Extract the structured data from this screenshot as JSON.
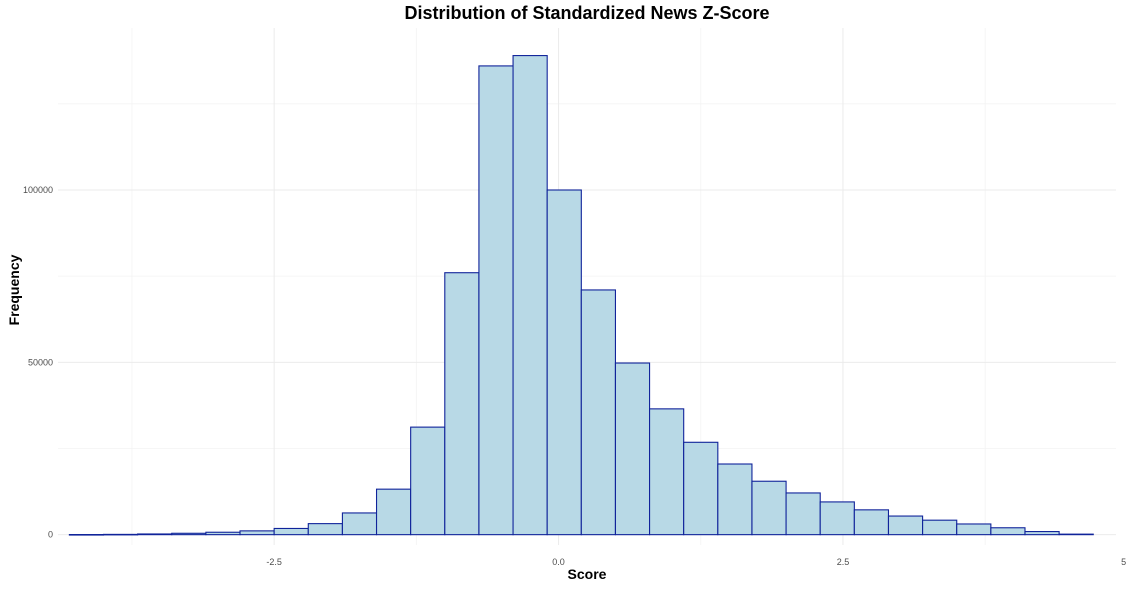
{
  "chart_data": {
    "type": "bar",
    "subtype": "histogram",
    "title": "Distribution of Standardized News Z-Score",
    "xlabel": "Score",
    "ylabel": "Frequency",
    "xlim": [
      -4.4,
      4.9
    ],
    "ylim": [
      -3000,
      147000
    ],
    "x_ticks": [
      -2.5,
      0.0,
      2.5,
      5.0
    ],
    "x_tick_labels": [
      "-2.5",
      "0.0",
      "2.5",
      "5.0"
    ],
    "y_ticks": [
      0,
      50000,
      100000
    ],
    "y_tick_labels": [
      "0",
      "50000",
      "100000"
    ],
    "grid": true,
    "legend": "none",
    "colors": {
      "fill": "#b8d9e6",
      "outline": "#10239a"
    },
    "bin_width": 0.3,
    "bin_starts": [
      -4.3,
      -4.0,
      -3.7,
      -3.4,
      -3.1,
      -2.8,
      -2.5,
      -2.2,
      -1.9,
      -1.6,
      -1.3,
      -1.0,
      -0.7,
      -0.4,
      -0.1,
      0.2,
      0.5,
      0.8,
      1.1,
      1.4,
      1.7,
      2.0,
      2.3,
      2.6,
      2.9,
      3.2,
      3.5,
      3.8,
      4.1,
      4.4
    ],
    "values": [
      30,
      80,
      200,
      400,
      700,
      1100,
      1800,
      3200,
      6300,
      13200,
      31200,
      76000,
      136000,
      139000,
      100000,
      71000,
      49800,
      36500,
      26800,
      20500,
      15500,
      12100,
      9500,
      7200,
      5400,
      4200,
      3100,
      2000,
      900,
      150
    ]
  }
}
